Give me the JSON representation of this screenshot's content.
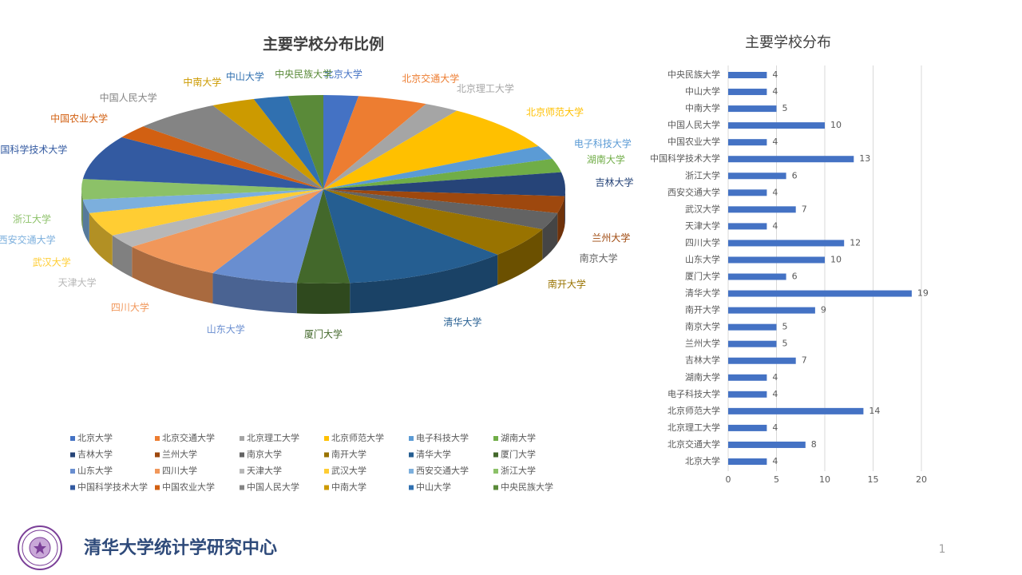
{
  "chart_data": [
    {
      "type": "pie",
      "title": "主要学校分布比例",
      "categories": [
        "北京大学",
        "北京交通大学",
        "北京理工大学",
        "北京师范大学",
        "电子科技大学",
        "湖南大学",
        "吉林大学",
        "兰州大学",
        "南京大学",
        "南开大学",
        "清华大学",
        "厦门大学",
        "山东大学",
        "四川大学",
        "天津大学",
        "武汉大学",
        "西安交通大学",
        "浙江大学",
        "中国科学技术大学",
        "中国农业大学",
        "中国人民大学",
        "中南大学",
        "中山大学",
        "中央民族大学"
      ],
      "values": [
        4,
        8,
        4,
        14,
        4,
        4,
        7,
        5,
        5,
        9,
        19,
        6,
        10,
        12,
        4,
        7,
        4,
        6,
        13,
        4,
        10,
        5,
        4,
        4
      ],
      "colors": [
        "#4472c4",
        "#ed7d31",
        "#a5a5a5",
        "#ffc000",
        "#5b9bd5",
        "#70ad47",
        "#264478",
        "#9e480e",
        "#636363",
        "#997300",
        "#255e91",
        "#43682b",
        "#698ed0",
        "#f1975a",
        "#b7b7b7",
        "#ffcd33",
        "#7cafdd",
        "#8cc168",
        "#335aa1",
        "#d26012",
        "#848484",
        "#cc9a00",
        "#3070b0",
        "#5a8a39"
      ],
      "legend": "bottom"
    },
    {
      "type": "hbar",
      "title": "主要学校分布",
      "categories": [
        "北京大学",
        "北京交通大学",
        "北京理工大学",
        "北京师范大学",
        "电子科技大学",
        "湖南大学",
        "吉林大学",
        "兰州大学",
        "南京大学",
        "南开大学",
        "清华大学",
        "厦门大学",
        "山东大学",
        "四川大学",
        "天津大学",
        "武汉大学",
        "西安交通大学",
        "浙江大学",
        "中国科学技术大学",
        "中国农业大学",
        "中国人民大学",
        "中南大学",
        "中山大学",
        "中央民族大学"
      ],
      "values": [
        4,
        8,
        4,
        14,
        4,
        4,
        7,
        5,
        5,
        9,
        19,
        6,
        10,
        12,
        4,
        7,
        4,
        6,
        13,
        4,
        10,
        5,
        4,
        4
      ],
      "color": "#4472c4",
      "xlim": [
        0,
        20
      ],
      "xticks": [
        0,
        5,
        10,
        15,
        20
      ],
      "grid": true
    }
  ],
  "footer": {
    "title": "清华大学统计学研究中心",
    "page_number": "1"
  }
}
